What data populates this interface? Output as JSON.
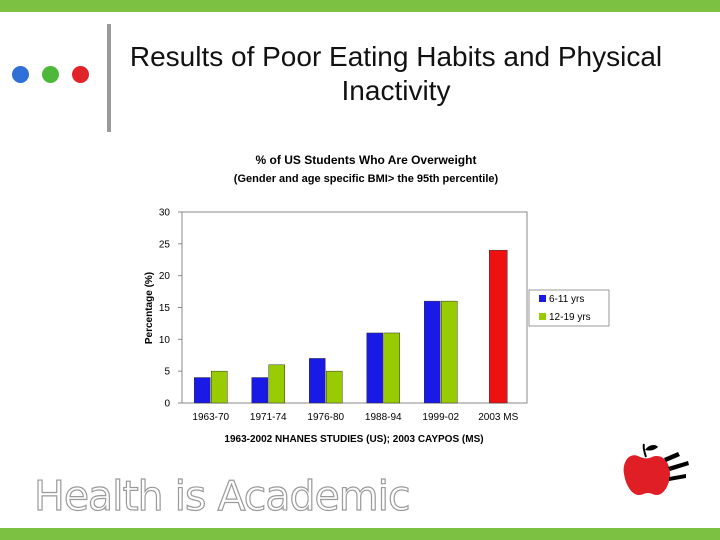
{
  "slide": {
    "title": "Results of Poor Eating Habits and Physical Inactivity",
    "footer_brand": "Health is Academic"
  },
  "colors": {
    "accent_green": "#7dc143",
    "dot_blue": "#2f6fd8",
    "dot_green": "#4db83a",
    "dot_red": "#e0242a",
    "apple_red": "#e01e26"
  },
  "chart_data": {
    "type": "bar",
    "title": "% of US Students Who Are Overweight",
    "subtitle": "(Gender and age specific BMI> the 95th percentile)",
    "xlabel": "1963-2002 NHANES STUDIES (US); 2003 CAYPOS (MS)",
    "ylabel": "Percentage (%)",
    "ylim": [
      0,
      30
    ],
    "yticks": [
      0,
      5,
      10,
      15,
      20,
      25,
      30
    ],
    "categories": [
      "1963-70",
      "1971-74",
      "1976-80",
      "1988-94",
      "1999-02",
      "2003 MS"
    ],
    "series": [
      {
        "name": "6-11 yrs",
        "color": "#1a1ae6",
        "values": [
          4,
          4,
          7,
          11,
          16,
          null
        ]
      },
      {
        "name": "12-19 yrs",
        "color": "#99cc00",
        "values": [
          5,
          6,
          5,
          11,
          16,
          null
        ]
      }
    ],
    "special_bars": [
      {
        "category": "2003 MS",
        "value": 24,
        "color": "#ee1111"
      }
    ],
    "legend_position": "right"
  }
}
